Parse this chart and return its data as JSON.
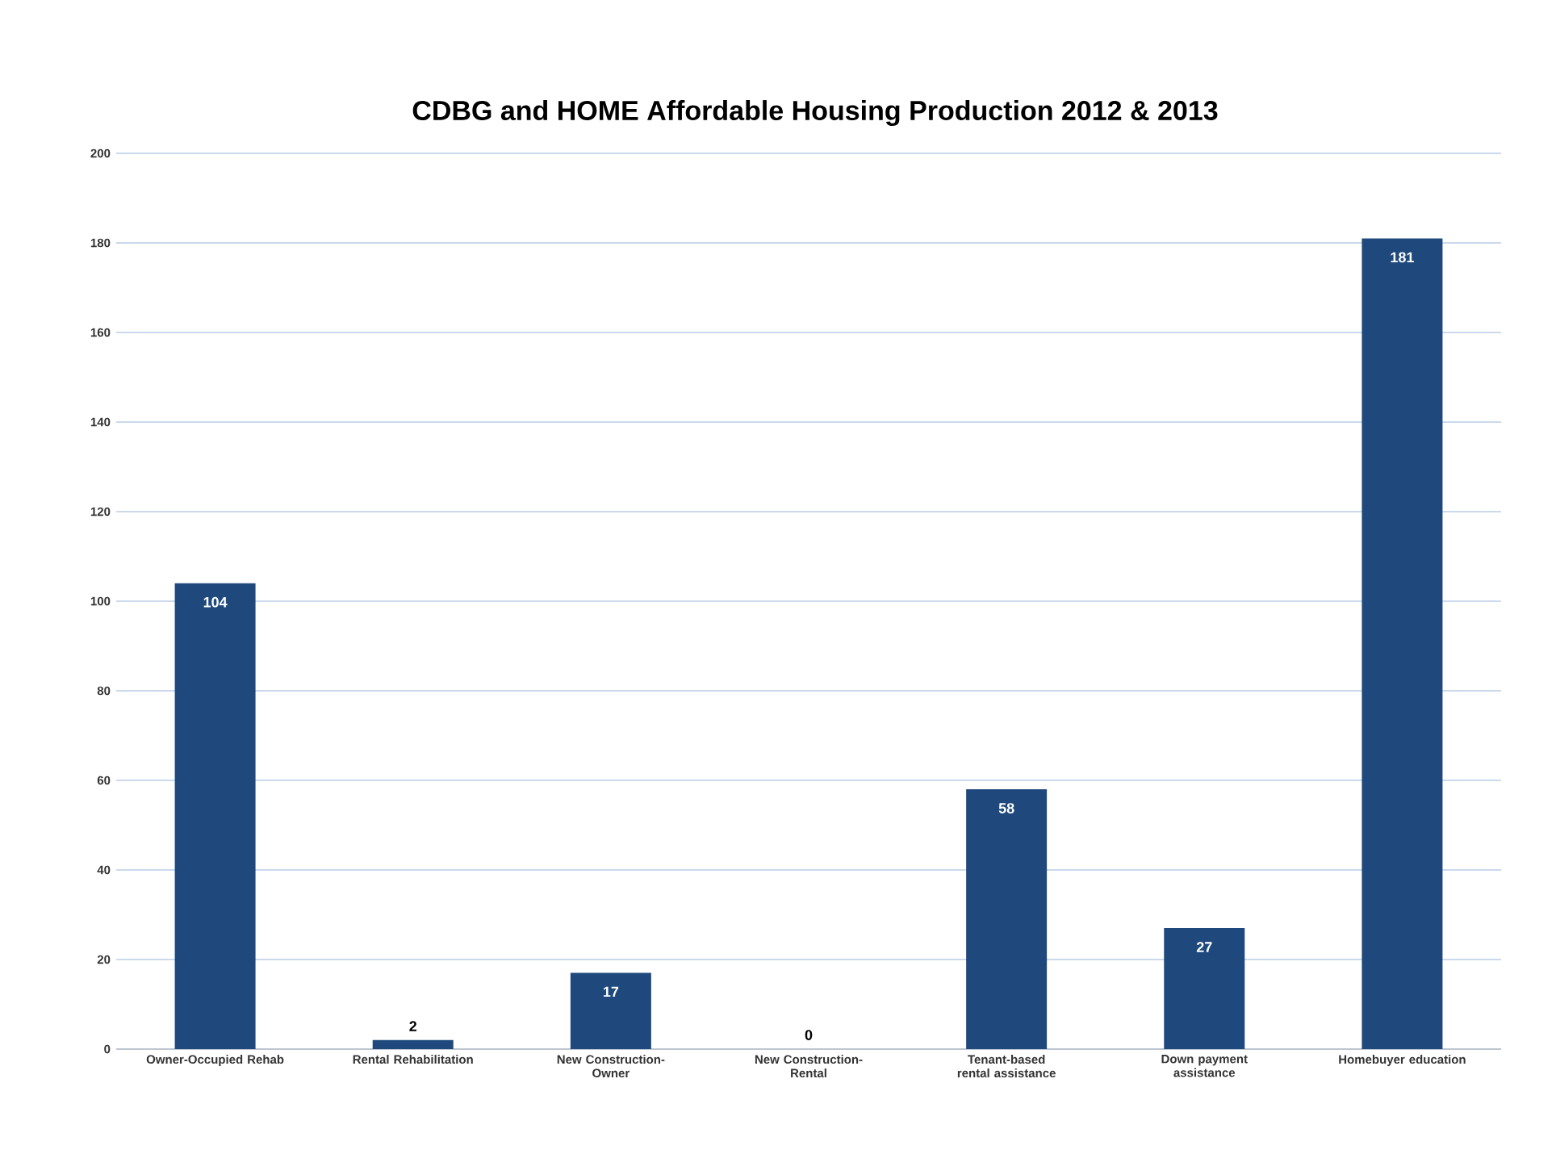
{
  "chart_data": {
    "type": "bar",
    "title": "CDBG and  HOME Affordable Housing Production  2012 & 2013",
    "categories": [
      "Owner-Occupied Rehab",
      "Rental Rehabilitation",
      "New Construction-Owner",
      "New Construction-Rental",
      "Tenant-based rental assistance",
      "Down payment assistance",
      "Homebuyer education"
    ],
    "values": [
      104,
      2,
      17,
      0,
      58,
      27,
      181
    ],
    "color": "#1f497d",
    "ylim": [
      0,
      200
    ],
    "yticks": [
      0,
      20,
      40,
      60,
      80,
      100,
      120,
      140,
      160,
      180,
      200
    ],
    "grid": "y",
    "data_labels": true
  }
}
